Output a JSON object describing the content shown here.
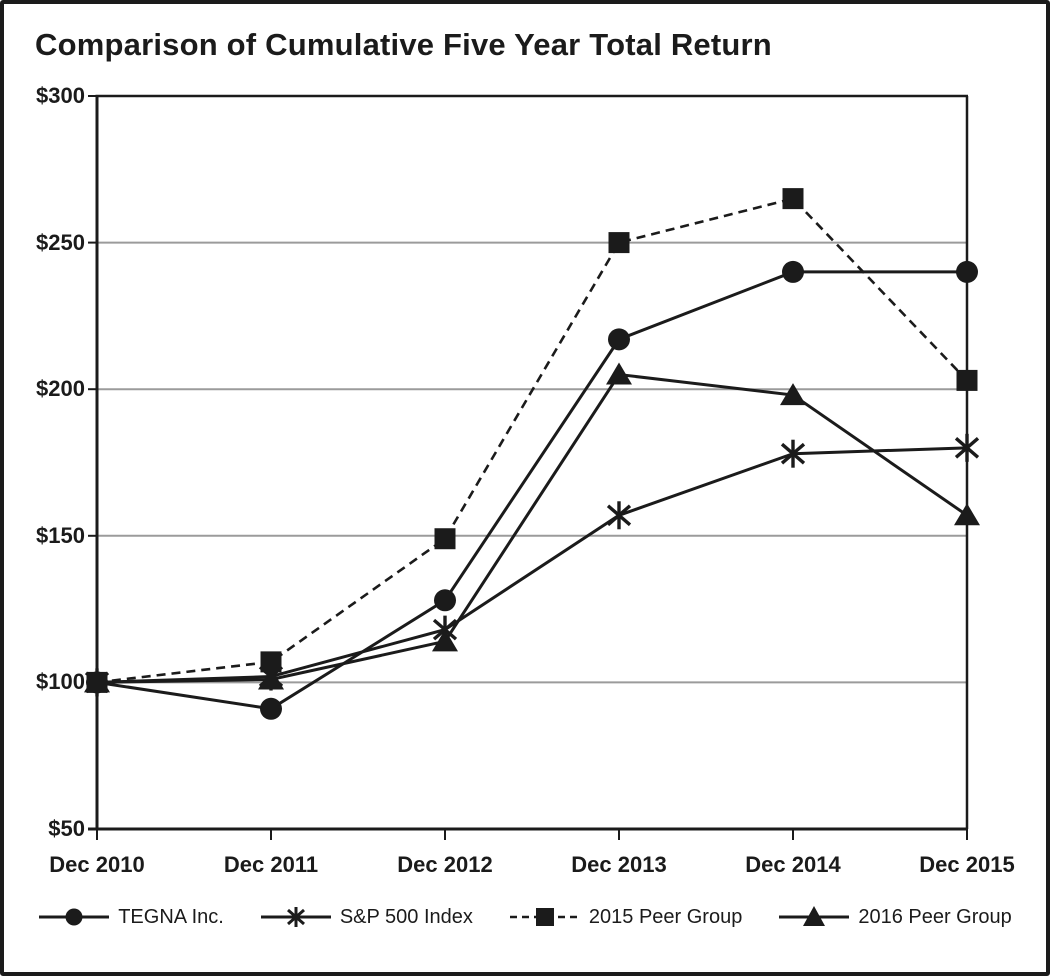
{
  "title": "Comparison of Cumulative Five Year Total Return",
  "chart_data": {
    "type": "line",
    "title": "Comparison of Cumulative Five Year Total Return",
    "x": [
      "Dec 2010",
      "Dec 2011",
      "Dec 2012",
      "Dec 2013",
      "Dec 2014",
      "Dec 2015"
    ],
    "series": [
      {
        "name": "TEGNA Inc.",
        "marker": "circle",
        "line": "solid",
        "values": [
          100,
          91,
          128,
          217,
          240,
          240
        ]
      },
      {
        "name": "S&P 500 Index",
        "marker": "star",
        "line": "solid",
        "values": [
          100,
          102,
          118,
          157,
          178,
          180
        ]
      },
      {
        "name": "2015 Peer Group",
        "marker": "square",
        "line": "dashed",
        "values": [
          100,
          107,
          149,
          250,
          265,
          203
        ]
      },
      {
        "name": "2016 Peer Group",
        "marker": "triangle",
        "line": "solid",
        "values": [
          100,
          101,
          114,
          205,
          198,
          157
        ]
      }
    ],
    "xlabel": "",
    "ylabel": "",
    "ylim": [
      50,
      300
    ],
    "yticks_top_to_bottom": [
      "$300",
      "$250",
      "$200",
      "$150",
      "$100",
      "$50"
    ],
    "gridlines_at": [
      100,
      150,
      200,
      250
    ],
    "grid": "horizontal only",
    "legend_position": "bottom",
    "colors": {
      "series": "#1b1b1b",
      "grid": "#9b9b9b",
      "background": "#ffffff",
      "frame": "#1b1b1b"
    }
  }
}
